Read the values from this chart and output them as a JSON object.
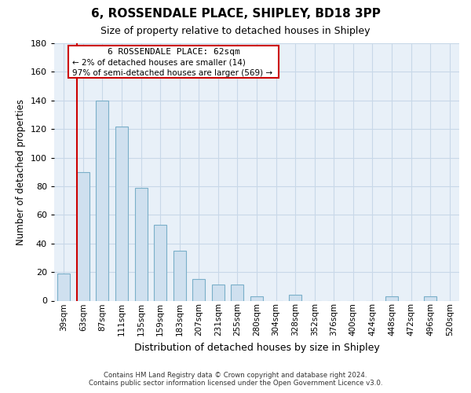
{
  "title": "6, ROSSENDALE PLACE, SHIPLEY, BD18 3PP",
  "subtitle": "Size of property relative to detached houses in Shipley",
  "xlabel": "Distribution of detached houses by size in Shipley",
  "ylabel": "Number of detached properties",
  "bar_color": "#cfe0ef",
  "bar_edge_color": "#7aafc9",
  "categories": [
    "39sqm",
    "63sqm",
    "87sqm",
    "111sqm",
    "135sqm",
    "159sqm",
    "183sqm",
    "207sqm",
    "231sqm",
    "255sqm",
    "280sqm",
    "304sqm",
    "328sqm",
    "352sqm",
    "376sqm",
    "400sqm",
    "424sqm",
    "448sqm",
    "472sqm",
    "496sqm",
    "520sqm"
  ],
  "values": [
    19,
    90,
    140,
    122,
    79,
    53,
    35,
    15,
    11,
    11,
    3,
    0,
    4,
    0,
    0,
    0,
    0,
    3,
    0,
    3,
    0
  ],
  "ylim": [
    0,
    180
  ],
  "yticks": [
    0,
    20,
    40,
    60,
    80,
    100,
    120,
    140,
    160,
    180
  ],
  "marker_color": "#cc0000",
  "annotation_title": "6 ROSSENDALE PLACE: 62sqm",
  "annotation_line1": "← 2% of detached houses are smaller (14)",
  "annotation_line2": "97% of semi-detached houses are larger (569) →",
  "annotation_box_color": "#ffffff",
  "annotation_box_edge": "#cc0000",
  "footer_line1": "Contains HM Land Registry data © Crown copyright and database right 2024.",
  "footer_line2": "Contains public sector information licensed under the Open Government Licence v3.0.",
  "background_color": "#ffffff",
  "plot_bg_color": "#e8f0f8",
  "grid_color": "#c8d8e8"
}
